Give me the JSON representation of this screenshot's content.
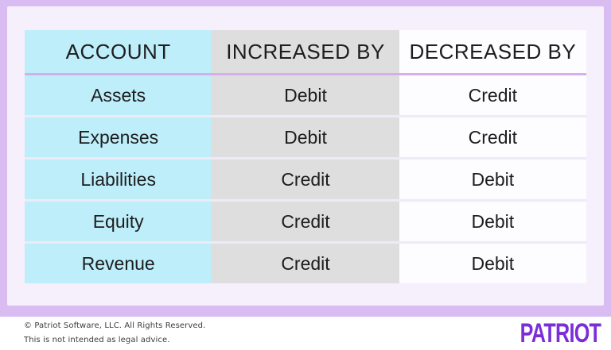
{
  "chart_data": {
    "type": "table",
    "title": "",
    "columns": [
      "ACCOUNT",
      "INCREASED BY",
      "DECREASED BY"
    ],
    "rows": [
      [
        "Assets",
        "Debit",
        "Credit"
      ],
      [
        "Expenses",
        "Debit",
        "Credit"
      ],
      [
        "Liabilities",
        "Credit",
        "Debit"
      ],
      [
        "Equity",
        "Credit",
        "Debit"
      ],
      [
        "Revenue",
        "Credit",
        "Debit"
      ]
    ]
  },
  "footer": {
    "copyright": "© Patriot Software, LLC. All Rights Reserved.",
    "disclaimer": "This is not intended as legal advice.",
    "brand": "PATRIOT"
  },
  "colors": {
    "frame_purple": "#d9bdf2",
    "panel_lavender": "#f5f0fb",
    "account_column_cyan": "#bdeef9",
    "increased_column_gray": "#dedede",
    "decreased_column_white": "#fdfcff",
    "header_divider_purple": "#d4afeb",
    "row_divider": "#efeaf8",
    "brand_purple": "#7b2ed8",
    "text_dark": "#1d1d1f"
  }
}
